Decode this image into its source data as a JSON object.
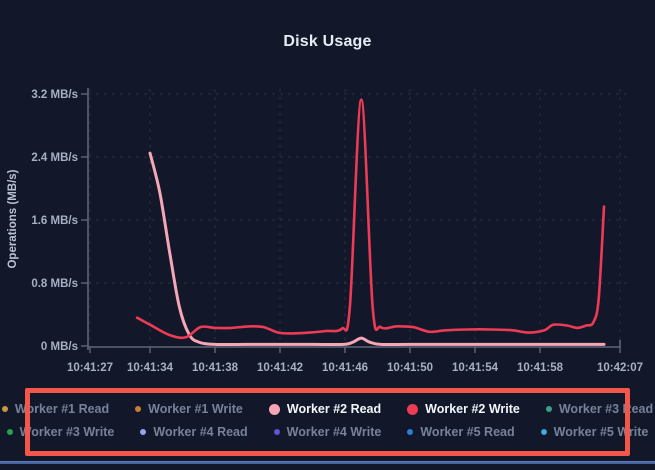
{
  "title": "Disk Usage",
  "colors": {
    "background": "#121829",
    "accent_highlight": "#f25749",
    "divider": "#45639f",
    "axis": "#5d6678",
    "tick_text": "#a6b0c3",
    "title_text": "#e7ebf3",
    "grid": "#9aa6bc",
    "legend_inactive_text": "#76829a",
    "legend_active_text": "#f4f6fa"
  },
  "chart_data": {
    "type": "line",
    "title": "Disk Usage",
    "xlabel": "",
    "ylabel": "Operations (MB/s)",
    "ylim": [
      0,
      3.2
    ],
    "grid": true,
    "legend_position": "bottom",
    "y_ticks": [
      {
        "label": "0 MB/s",
        "value": 0
      },
      {
        "label": "0.8 MB/s",
        "value": 0.8
      },
      {
        "label": "1.6 MB/s",
        "value": 1.6
      },
      {
        "label": "2.4 MB/s",
        "value": 2.4
      },
      {
        "label": "3.2 MB/s",
        "value": 3.2
      }
    ],
    "x_ticks": [
      {
        "label": "10:41:27",
        "seconds": 0
      },
      {
        "label": "10:41:34",
        "seconds": 7
      },
      {
        "label": "10:41:38",
        "seconds": 11
      },
      {
        "label": "10:41:42",
        "seconds": 15
      },
      {
        "label": "10:41:46",
        "seconds": 19
      },
      {
        "label": "10:41:50",
        "seconds": 23
      },
      {
        "label": "10:41:54",
        "seconds": 27
      },
      {
        "label": "10:41:58",
        "seconds": 31
      },
      {
        "label": "10:42:07",
        "seconds": 40
      }
    ],
    "series": [
      {
        "name": "Worker #2 Read",
        "color": "#f6a6b5",
        "unit": "MB/s",
        "points": [
          [
            7,
            2.45
          ],
          [
            7.6,
            1.95
          ],
          [
            8.2,
            1.2
          ],
          [
            8.8,
            0.5
          ],
          [
            9.4,
            0.15
          ],
          [
            10,
            0.05
          ],
          [
            11,
            0.02
          ],
          [
            13,
            0.02
          ],
          [
            15,
            0.02
          ],
          [
            17,
            0.02
          ],
          [
            18.9,
            0.02
          ],
          [
            19.5,
            0.05
          ],
          [
            20,
            0.1
          ],
          [
            20.5,
            0.05
          ],
          [
            21.2,
            0.02
          ],
          [
            23,
            0.02
          ],
          [
            25,
            0.02
          ],
          [
            27,
            0.02
          ],
          [
            29,
            0.02
          ],
          [
            31,
            0.02
          ],
          [
            33,
            0.02
          ],
          [
            35,
            0.02
          ],
          [
            36.5,
            0.02
          ],
          [
            38.2,
            0.02
          ]
        ]
      },
      {
        "name": "Worker #2 Write",
        "color": "#ec3b55",
        "unit": "MB/s",
        "points": [
          [
            5.5,
            0.36
          ],
          [
            7,
            0.27
          ],
          [
            8.2,
            0.14
          ],
          [
            9.2,
            0.11
          ],
          [
            10.1,
            0.24
          ],
          [
            11,
            0.23
          ],
          [
            12,
            0.23
          ],
          [
            13.2,
            0.25
          ],
          [
            14,
            0.24
          ],
          [
            14.9,
            0.17
          ],
          [
            15.8,
            0.16
          ],
          [
            16.8,
            0.17
          ],
          [
            17.8,
            0.19
          ],
          [
            18.8,
            0.22
          ],
          [
            19.3,
            0.5
          ],
          [
            20,
            3.13
          ],
          [
            20.7,
            0.5
          ],
          [
            21.2,
            0.24
          ],
          [
            22.2,
            0.25
          ],
          [
            23.2,
            0.24
          ],
          [
            24.2,
            0.18
          ],
          [
            25.2,
            0.2
          ],
          [
            26.5,
            0.21
          ],
          [
            28,
            0.21
          ],
          [
            29.3,
            0.2
          ],
          [
            30.3,
            0.17
          ],
          [
            31.5,
            0.2
          ],
          [
            32.5,
            0.27
          ],
          [
            34,
            0.26
          ],
          [
            35.2,
            0.23
          ],
          [
            36.2,
            0.26
          ],
          [
            37,
            0.3
          ],
          [
            37.6,
            0.6
          ],
          [
            38.2,
            1.77
          ]
        ]
      }
    ]
  },
  "legend": {
    "rows": [
      {
        "items": [
          {
            "label": "Worker #1 Read",
            "color": "#c49a3f",
            "active": false
          },
          {
            "label": "Worker #1 Write",
            "color": "#c97e35",
            "active": false
          },
          {
            "label": "Worker #2 Read",
            "color": "#f6a6b5",
            "active": true
          },
          {
            "label": "Worker #2 Write",
            "color": "#ec3b55",
            "active": true
          },
          {
            "label": "Worker #3 Read",
            "color": "#36a287",
            "active": false
          }
        ]
      },
      {
        "items": [
          {
            "label": "Worker #3 Write",
            "color": "#23a257",
            "active": false
          },
          {
            "label": "Worker #4 Read",
            "color": "#97a3ea",
            "active": false
          },
          {
            "label": "Worker #4 Write",
            "color": "#5e55dd",
            "active": false
          },
          {
            "label": "Worker #5 Read",
            "color": "#2481d6",
            "active": false
          },
          {
            "label": "Worker #5 Write",
            "color": "#42a6dd",
            "active": false
          }
        ]
      }
    ]
  }
}
